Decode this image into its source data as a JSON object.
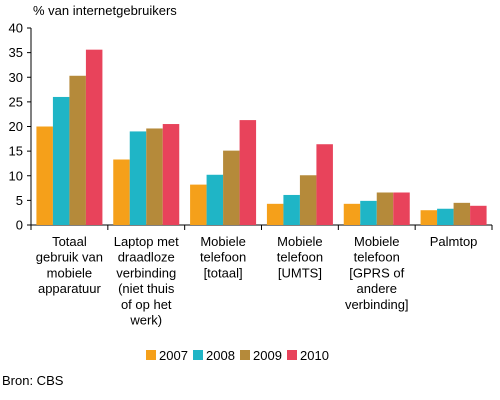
{
  "chart_data": {
    "type": "bar",
    "ylabel": "% van internetgebruikers",
    "xlabel": "",
    "ylim": [
      0,
      40
    ],
    "yticks": [
      0,
      5,
      10,
      15,
      20,
      25,
      30,
      35,
      40
    ],
    "grid": false,
    "legend_position": "bottom",
    "categories": [
      "Totaal gebruik van mobiele apparatuur",
      "Laptop met draadloze verbinding (niet thuis of op het werk)",
      "Mobiele telefoon [totaal]",
      "Mobiele telefoon [UMTS]",
      "Mobiele telefoon [GPRS of andere verbinding]",
      "Palmtop"
    ],
    "category_lines": [
      [
        "Totaal",
        "gebruik van",
        "mobiele",
        "apparatuur"
      ],
      [
        "Laptop met",
        "draadloze",
        "verbinding",
        "(niet thuis",
        "of op het",
        "werk)"
      ],
      [
        "Mobiele",
        "telefoon",
        "[totaal]"
      ],
      [
        "Mobiele",
        "telefoon",
        "[UMTS]"
      ],
      [
        "Mobiele",
        "telefoon",
        "[GPRS of",
        "andere",
        "verbinding]"
      ],
      [
        "Palmtop"
      ]
    ],
    "series": [
      {
        "name": "2007",
        "color": "#f5a01a",
        "values": [
          20,
          13.3,
          8.2,
          4.3,
          4.3,
          3.0
        ]
      },
      {
        "name": "2008",
        "color": "#1fb5c6",
        "values": [
          26,
          19,
          10.2,
          6.1,
          4.9,
          3.3
        ]
      },
      {
        "name": "2009",
        "color": "#b58a3a",
        "values": [
          30.3,
          19.6,
          15.1,
          10.1,
          6.6,
          4.5
        ]
      },
      {
        "name": "2010",
        "color": "#e8435b",
        "values": [
          35.6,
          20.5,
          21.3,
          16.4,
          6.6,
          3.9
        ]
      }
    ],
    "source": "Bron: CBS"
  }
}
